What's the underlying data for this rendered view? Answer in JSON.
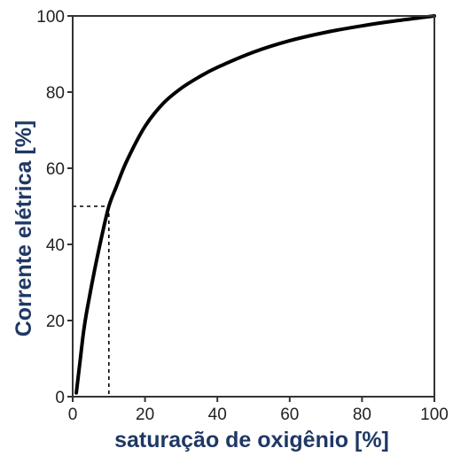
{
  "chart_data": {
    "type": "line",
    "title": "",
    "xlabel": "saturação de oxigênio [%]",
    "ylabel": "Corrente elétrica [%]",
    "xlim": [
      0,
      100
    ],
    "ylim": [
      0,
      100
    ],
    "xticks": [
      "0",
      "20",
      "40",
      "60",
      "80",
      "100"
    ],
    "yticks": [
      "0",
      "20",
      "40",
      "60",
      "80",
      "100"
    ],
    "grid": false,
    "legend": "none",
    "series": [
      {
        "x": [
          1,
          2,
          3,
          4,
          6,
          8,
          10,
          12,
          15,
          20,
          25,
          30,
          35,
          40,
          50,
          60,
          70,
          80,
          90,
          100
        ],
        "y": [
          1,
          9,
          17,
          23,
          33,
          42,
          50,
          55,
          62,
          71,
          77,
          81,
          84,
          86.5,
          90.5,
          93.5,
          95.7,
          97.4,
          98.8,
          100
        ],
        "color": "#000000"
      }
    ],
    "reference_point": {
      "x": 10,
      "y": 50
    },
    "colors": {
      "axis_title": "#1f3864",
      "curve": "#000000",
      "frame": "#333333"
    }
  }
}
